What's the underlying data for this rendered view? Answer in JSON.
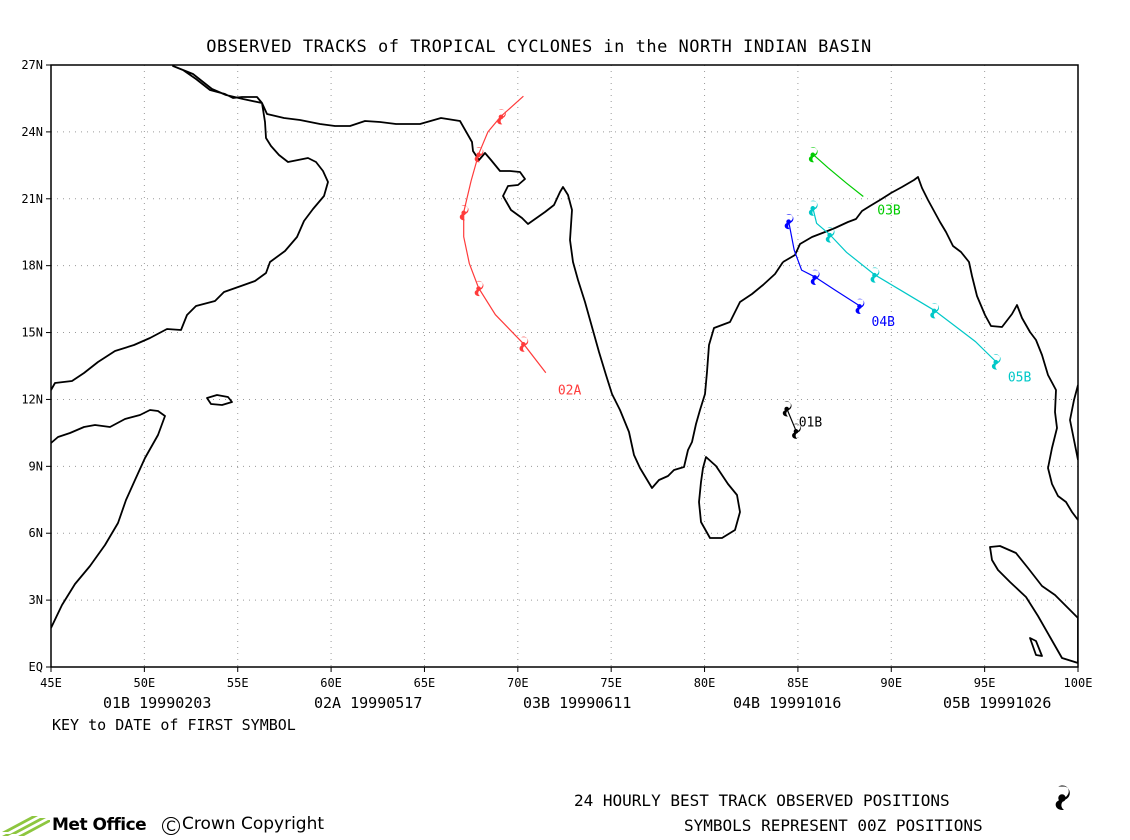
{
  "map": {
    "title": "OBSERVED TRACKS of TROPICAL CYCLONES in the NORTH INDIAN BASIN",
    "region": "North Indian Ocean",
    "lon_range": [
      45,
      100
    ],
    "lat_range": [
      0,
      27
    ],
    "lon_ticks": [
      "45E",
      "50E",
      "55E",
      "60E",
      "65E",
      "70E",
      "75E",
      "80E",
      "85E",
      "90E",
      "95E",
      "100E"
    ],
    "lat_ticks": [
      "EQ",
      "3N",
      "6N",
      "9N",
      "12N",
      "15N",
      "18N",
      "21N",
      "24N",
      "27N"
    ],
    "grid": "dotted",
    "coastline_color": "#000000"
  },
  "storms": [
    {
      "id": "01B",
      "label": "01B",
      "first_date": "19990203",
      "color": "#000000",
      "track": [
        [
          84.4,
          11.6
        ],
        [
          84.9,
          10.6
        ]
      ]
    },
    {
      "id": "02A",
      "label": "02A",
      "first_date": "19990517",
      "color": "#ff3b3b",
      "track": [
        [
          70.3,
          25.6
        ],
        [
          69.1,
          24.7
        ],
        [
          68.4,
          24.0
        ],
        [
          67.9,
          23.0
        ],
        [
          67.5,
          21.8
        ],
        [
          67.1,
          20.4
        ],
        [
          67.1,
          19.3
        ],
        [
          67.4,
          18.1
        ],
        [
          67.9,
          17.0
        ],
        [
          68.8,
          15.8
        ],
        [
          70.3,
          14.5
        ],
        [
          71.5,
          13.2
        ]
      ]
    },
    {
      "id": "03B",
      "label": "03B",
      "first_date": "19990611",
      "color": "#00cc00",
      "track": [
        [
          85.8,
          23.0
        ],
        [
          86.6,
          22.4
        ],
        [
          87.6,
          21.7
        ],
        [
          88.5,
          21.1
        ]
      ]
    },
    {
      "id": "04B",
      "label": "04B",
      "first_date": "19991016",
      "color": "#0000ff",
      "track": [
        [
          88.3,
          16.2
        ],
        [
          87.0,
          16.9
        ],
        [
          85.9,
          17.5
        ],
        [
          85.2,
          17.8
        ],
        [
          84.8,
          18.7
        ],
        [
          84.5,
          20.0
        ]
      ]
    },
    {
      "id": "05B",
      "label": "05B",
      "first_date": "19991026",
      "color": "#00c8c8",
      "track": [
        [
          95.6,
          13.7
        ],
        [
          94.5,
          14.6
        ],
        [
          93.4,
          15.3
        ],
        [
          92.3,
          16.0
        ],
        [
          90.5,
          16.9
        ],
        [
          89.1,
          17.6
        ],
        [
          87.6,
          18.6
        ],
        [
          86.7,
          19.4
        ],
        [
          86.0,
          19.9
        ],
        [
          85.8,
          20.6
        ]
      ]
    }
  ],
  "first_symbol_key": {
    "entries": [
      {
        "id": "01B",
        "date": "19990203"
      },
      {
        "id": "02A",
        "date": "19990517"
      },
      {
        "id": "03B",
        "date": "19990611"
      },
      {
        "id": "04B",
        "date": "19991016"
      },
      {
        "id": "05B",
        "date": "19991026"
      }
    ],
    "label": "KEY to DATE of FIRST SYMBOL"
  },
  "legend": {
    "line1": "24 HOURLY BEST TRACK OBSERVED POSITIONS",
    "line2": "SYMBOLS REPRESENT 00Z POSITIONS",
    "symbol_icon": "tropical-cyclone-icon"
  },
  "branding": {
    "logo_text": "Met Office",
    "copyright_symbol": "C",
    "copyright_text": "Crown Copyright"
  }
}
